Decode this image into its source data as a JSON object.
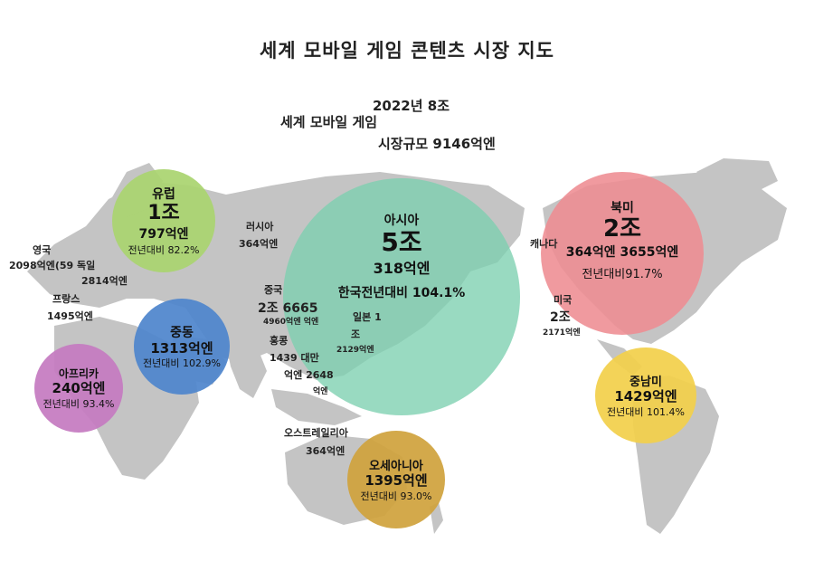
{
  "title": "세계 모바일 게임 콘텐츠 시장 지도",
  "summary": {
    "line1": "2022년 8조",
    "line2": "세계 모바일 게임",
    "line3": "시장규모 9146억엔"
  },
  "regions": {
    "europe": {
      "name": "유럽",
      "big": "1조",
      "mid": "797억엔",
      "growth": "전년대비 82.2%",
      "color": "#a9d46f"
    },
    "asia": {
      "name": "아시아",
      "big": "5조",
      "mid": "318억엔",
      "growth": "한국전년대비 104.1%",
      "color": "#7ccfb0"
    },
    "north_america": {
      "name": "북미",
      "big": "2조",
      "mid": "364억엔 3655억엔",
      "growth": "전년대비91.7%",
      "color": "#ee8c92"
    },
    "middle_east": {
      "name": "중동",
      "big": "1313억엔",
      "growth": "전년대비 102.9%",
      "color": "#4d84cc"
    },
    "africa": {
      "name": "아프리카",
      "big": "240억엔",
      "growth": "전년대비 93.4%",
      "color": "#c47ac0"
    },
    "latin_america": {
      "name": "중남미",
      "big": "1429억엔",
      "growth": "전년대비 101.4%",
      "color": "#f2cf4a"
    },
    "oceania": {
      "name": "오세아니아",
      "big": "1395억엔",
      "growth": "전년대비 93.0%",
      "color": "#cfa23c"
    }
  },
  "labels": {
    "uk_name": "영국",
    "uk_value": "2098억엔(59 독일",
    "germany_value": "2814억엔",
    "france_name": "프랑스",
    "france_value": "1495억엔",
    "russia_name": "러시아",
    "russia_value": "364억엔",
    "china_name": "중국",
    "china_value": "2조 6665",
    "china_sub": "4960억엔 억엔",
    "hongkong_name": "홍콩",
    "hongkong_value": "1439 대만",
    "taiwan_value": "억엔 2648",
    "taiwan_unit": "억엔",
    "japan_name": "일본 1",
    "japan_value": "조",
    "japan_sub": "2129억엔",
    "canada_name": "캐나다",
    "usa_name": "미국",
    "usa_value": "2조",
    "usa_sub": "2171억엔",
    "australia_name": "오스트레일리아",
    "australia_value": "364억엔"
  }
}
